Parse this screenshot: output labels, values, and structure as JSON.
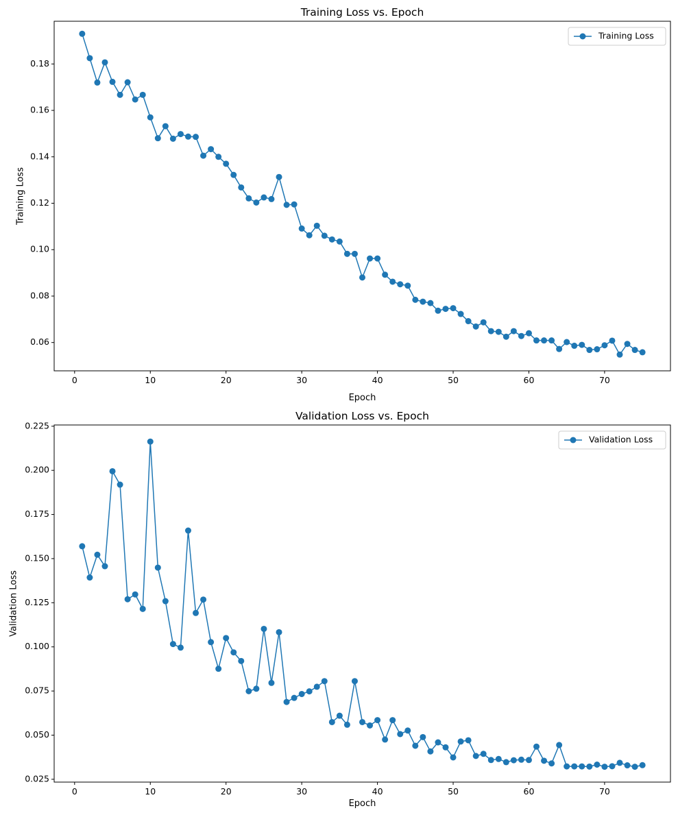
{
  "chart_data": [
    {
      "type": "line",
      "title": "Training Loss vs. Epoch",
      "xlabel": "Epoch",
      "ylabel": "Training Loss",
      "xlim": [
        -2.7,
        78.7
      ],
      "ylim": [
        0.0478,
        0.1984
      ],
      "xticks": [
        0,
        10,
        20,
        30,
        40,
        50,
        60,
        70
      ],
      "xtick_labels": [
        "0",
        "10",
        "20",
        "30",
        "40",
        "50",
        "60",
        "70"
      ],
      "yticks": [
        0.06,
        0.08,
        0.1,
        0.12,
        0.14,
        0.16,
        0.18
      ],
      "ytick_labels": [
        "0.06",
        "0.08",
        "0.10",
        "0.12",
        "0.14",
        "0.16",
        "0.18"
      ],
      "grid": false,
      "legend_position": "top-right",
      "color": "#1f77b4",
      "marker": "circle",
      "series": [
        {
          "name": "Training Loss",
          "x": [
            1,
            2,
            3,
            4,
            5,
            6,
            7,
            8,
            9,
            10,
            11,
            12,
            13,
            14,
            15,
            16,
            17,
            18,
            19,
            20,
            21,
            22,
            23,
            24,
            25,
            26,
            27,
            28,
            29,
            30,
            31,
            32,
            33,
            34,
            35,
            36,
            37,
            38,
            39,
            40,
            41,
            42,
            43,
            44,
            45,
            46,
            47,
            48,
            49,
            50,
            51,
            52,
            53,
            54,
            55,
            56,
            57,
            58,
            59,
            60,
            61,
            62,
            63,
            64,
            65,
            66,
            67,
            68,
            69,
            70,
            71,
            72,
            73,
            74,
            75
          ],
          "values": [
            0.193,
            0.1825,
            0.172,
            0.1807,
            0.1723,
            0.1667,
            0.1721,
            0.1647,
            0.1667,
            0.157,
            0.148,
            0.1532,
            0.1478,
            0.1498,
            0.1487,
            0.1486,
            0.1405,
            0.1433,
            0.14,
            0.137,
            0.1322,
            0.1268,
            0.1221,
            0.1203,
            0.1225,
            0.1218,
            0.1313,
            0.1193,
            0.1195,
            0.1091,
            0.1062,
            0.1103,
            0.106,
            0.1044,
            0.1035,
            0.0982,
            0.0982,
            0.088,
            0.0962,
            0.0962,
            0.0892,
            0.0862,
            0.0851,
            0.0845,
            0.0784,
            0.0776,
            0.077,
            0.0737,
            0.0745,
            0.0748,
            0.0723,
            0.0692,
            0.0669,
            0.0687,
            0.0649,
            0.0646,
            0.0625,
            0.0649,
            0.0628,
            0.064,
            0.0609,
            0.0609,
            0.0609,
            0.0572,
            0.0602,
            0.0586,
            0.059,
            0.0568,
            0.0571,
            0.0588,
            0.0608,
            0.0548,
            0.0594,
            0.0568,
            0.0558
          ]
        }
      ]
    },
    {
      "type": "line",
      "title": "Validation Loss vs. Epoch",
      "xlabel": "Epoch",
      "ylabel": "Validation Loss",
      "xlim": [
        -2.7,
        78.7
      ],
      "ylim": [
        0.0234,
        0.2257
      ],
      "xticks": [
        0,
        10,
        20,
        30,
        40,
        50,
        60,
        70
      ],
      "xtick_labels": [
        "0",
        "10",
        "20",
        "30",
        "40",
        "50",
        "60",
        "70"
      ],
      "yticks": [
        0.025,
        0.05,
        0.075,
        0.1,
        0.125,
        0.15,
        0.175,
        0.2,
        0.225
      ],
      "ytick_labels": [
        "0.025",
        "0.050",
        "0.075",
        "0.100",
        "0.125",
        "0.150",
        "0.175",
        "0.200",
        "0.225"
      ],
      "grid": false,
      "legend_position": "top-right",
      "color": "#1f77b4",
      "marker": "circle",
      "series": [
        {
          "name": "Validation Loss",
          "x": [
            1,
            2,
            3,
            4,
            5,
            6,
            7,
            8,
            9,
            10,
            11,
            12,
            13,
            14,
            15,
            16,
            17,
            18,
            19,
            20,
            21,
            22,
            23,
            24,
            25,
            26,
            27,
            28,
            29,
            30,
            31,
            32,
            33,
            34,
            35,
            36,
            37,
            38,
            39,
            40,
            41,
            42,
            43,
            44,
            45,
            46,
            47,
            48,
            49,
            50,
            51,
            52,
            53,
            54,
            55,
            56,
            57,
            58,
            59,
            60,
            61,
            62,
            63,
            64,
            65,
            66,
            67,
            68,
            69,
            70,
            71,
            72,
            73,
            74,
            75
          ],
          "values": [
            0.157,
            0.1393,
            0.1522,
            0.1457,
            0.1995,
            0.1919,
            0.127,
            0.1297,
            0.1215,
            0.2163,
            0.1449,
            0.1259,
            0.1016,
            0.0996,
            0.1659,
            0.1192,
            0.1268,
            0.1027,
            0.0876,
            0.105,
            0.0969,
            0.092,
            0.0749,
            0.0763,
            0.1102,
            0.0796,
            0.1083,
            0.0688,
            0.0711,
            0.0733,
            0.0748,
            0.0774,
            0.0806,
            0.0574,
            0.061,
            0.0559,
            0.0806,
            0.0574,
            0.0555,
            0.0585,
            0.0475,
            0.0585,
            0.0506,
            0.0526,
            0.044,
            0.0489,
            0.0408,
            0.0459,
            0.0431,
            0.0374,
            0.0464,
            0.0471,
            0.0382,
            0.0394,
            0.0359,
            0.0365,
            0.0347,
            0.0358,
            0.0361,
            0.0359,
            0.0435,
            0.0355,
            0.034,
            0.0444,
            0.0323,
            0.0323,
            0.0323,
            0.0322,
            0.0333,
            0.0321,
            0.0324,
            0.0343,
            0.0329,
            0.0321,
            0.033
          ]
        }
      ]
    }
  ]
}
